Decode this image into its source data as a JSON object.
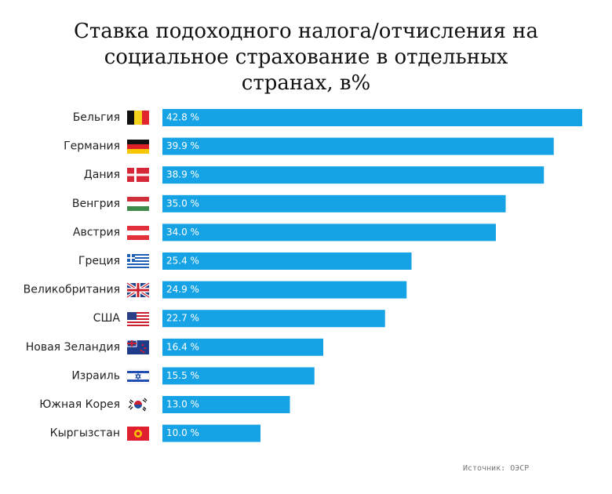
{
  "chart_data": {
    "type": "bar",
    "orientation": "horizontal",
    "title": "Ставка подоходного налога/отчисления на социальное страхование в отдельных странах, в%",
    "categories": [
      "Бельгия",
      "Германия",
      "Дания",
      "Венгрия",
      "Австрия",
      "Греция",
      "Великобритания",
      "США",
      "Новая Зеландия",
      "Израиль",
      "Южная Корея",
      "Кыргызстан"
    ],
    "values": [
      42.8,
      39.9,
      38.9,
      35.0,
      34.0,
      25.4,
      24.9,
      22.7,
      16.4,
      15.5,
      13.0,
      10.0
    ],
    "value_labels": [
      "42.8 %",
      "39.9 %",
      "38.9 %",
      "35.0 %",
      "34.0 %",
      "25.4 %",
      "24.9 %",
      "22.7 %",
      "16.4 %",
      "15.5 %",
      "13.0 %",
      "10.0 %"
    ],
    "color": "#16a3e6",
    "source": "Источник: ОЭСР"
  }
}
